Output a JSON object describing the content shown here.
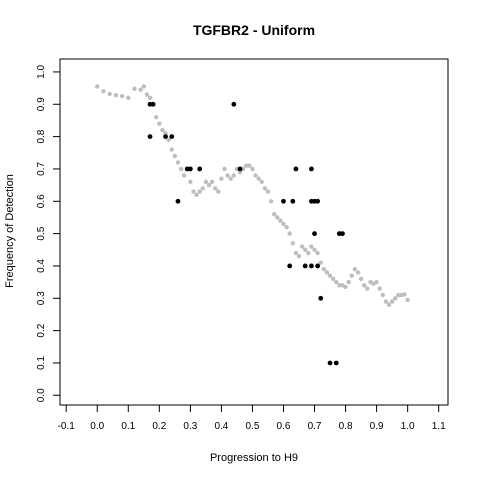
{
  "chart_data": {
    "type": "scatter",
    "title": "TGFBR2 - Uniform",
    "xlabel": "Progression to H9",
    "ylabel": "Frequency of Detection",
    "xlim": [
      -0.12,
      1.13
    ],
    "ylim": [
      -0.03,
      1.04
    ],
    "xticks": [
      -0.1,
      0.0,
      0.1,
      0.2,
      0.3,
      0.4,
      0.5,
      0.6,
      0.7,
      0.8,
      0.9,
      1.0,
      1.1
    ],
    "yticks": [
      0.0,
      0.1,
      0.2,
      0.3,
      0.4,
      0.5,
      0.6,
      0.7,
      0.8,
      0.9,
      1.0
    ],
    "tick_labels_x": [
      "-0.1",
      "0.0",
      "0.1",
      "0.2",
      "0.3",
      "0.4",
      "0.5",
      "0.6",
      "0.7",
      "0.8",
      "0.9",
      "1.0",
      "1.1"
    ],
    "tick_labels_y": [
      "0.0",
      "0.1",
      "0.2",
      "0.3",
      "0.4",
      "0.5",
      "0.6",
      "0.7",
      "0.8",
      "0.9",
      "1.0"
    ],
    "grid": false,
    "series": [
      {
        "style": "trend",
        "color": "#bebebe",
        "points": [
          [
            0.0,
            0.955
          ],
          [
            0.02,
            0.94
          ],
          [
            0.04,
            0.932
          ],
          [
            0.06,
            0.928
          ],
          [
            0.08,
            0.925
          ],
          [
            0.1,
            0.92
          ],
          [
            0.12,
            0.948
          ],
          [
            0.14,
            0.945
          ],
          [
            0.15,
            0.955
          ],
          [
            0.16,
            0.93
          ],
          [
            0.17,
            0.92
          ],
          [
            0.18,
            0.9
          ],
          [
            0.19,
            0.86
          ],
          [
            0.2,
            0.84
          ],
          [
            0.21,
            0.82
          ],
          [
            0.22,
            0.81
          ],
          [
            0.23,
            0.79
          ],
          [
            0.24,
            0.76
          ],
          [
            0.25,
            0.74
          ],
          [
            0.26,
            0.72
          ],
          [
            0.27,
            0.7
          ],
          [
            0.28,
            0.68
          ],
          [
            0.29,
            0.7
          ],
          [
            0.3,
            0.66
          ],
          [
            0.31,
            0.63
          ],
          [
            0.32,
            0.62
          ],
          [
            0.33,
            0.63
          ],
          [
            0.34,
            0.64
          ],
          [
            0.35,
            0.66
          ],
          [
            0.36,
            0.65
          ],
          [
            0.37,
            0.66
          ],
          [
            0.38,
            0.64
          ],
          [
            0.39,
            0.63
          ],
          [
            0.4,
            0.67
          ],
          [
            0.41,
            0.7
          ],
          [
            0.42,
            0.68
          ],
          [
            0.43,
            0.67
          ],
          [
            0.44,
            0.68
          ],
          [
            0.45,
            0.7
          ],
          [
            0.46,
            0.69
          ],
          [
            0.47,
            0.7
          ],
          [
            0.48,
            0.71
          ],
          [
            0.49,
            0.71
          ],
          [
            0.5,
            0.7
          ],
          [
            0.51,
            0.68
          ],
          [
            0.52,
            0.67
          ],
          [
            0.53,
            0.66
          ],
          [
            0.54,
            0.64
          ],
          [
            0.55,
            0.63
          ],
          [
            0.56,
            0.6
          ],
          [
            0.57,
            0.56
          ],
          [
            0.58,
            0.55
          ],
          [
            0.59,
            0.54
          ],
          [
            0.6,
            0.53
          ],
          [
            0.61,
            0.52
          ],
          [
            0.62,
            0.5
          ],
          [
            0.63,
            0.47
          ],
          [
            0.64,
            0.44
          ],
          [
            0.65,
            0.43
          ],
          [
            0.66,
            0.46
          ],
          [
            0.67,
            0.45
          ],
          [
            0.68,
            0.44
          ],
          [
            0.69,
            0.46
          ],
          [
            0.7,
            0.45
          ],
          [
            0.71,
            0.44
          ],
          [
            0.72,
            0.41
          ],
          [
            0.73,
            0.39
          ],
          [
            0.74,
            0.38
          ],
          [
            0.75,
            0.37
          ],
          [
            0.76,
            0.36
          ],
          [
            0.77,
            0.35
          ],
          [
            0.78,
            0.34
          ],
          [
            0.79,
            0.34
          ],
          [
            0.8,
            0.335
          ],
          [
            0.81,
            0.35
          ],
          [
            0.82,
            0.37
          ],
          [
            0.83,
            0.39
          ],
          [
            0.84,
            0.38
          ],
          [
            0.85,
            0.36
          ],
          [
            0.86,
            0.34
          ],
          [
            0.87,
            0.33
          ],
          [
            0.88,
            0.35
          ],
          [
            0.89,
            0.345
          ],
          [
            0.9,
            0.35
          ],
          [
            0.91,
            0.33
          ],
          [
            0.92,
            0.31
          ],
          [
            0.93,
            0.29
          ],
          [
            0.94,
            0.28
          ],
          [
            0.95,
            0.29
          ],
          [
            0.96,
            0.3
          ],
          [
            0.97,
            0.31
          ],
          [
            0.98,
            0.31
          ],
          [
            0.99,
            0.312
          ],
          [
            1.0,
            0.295
          ]
        ]
      },
      {
        "style": "observed",
        "color": "#000000",
        "points": [
          [
            0.17,
            0.9
          ],
          [
            0.18,
            0.9
          ],
          [
            0.17,
            0.8
          ],
          [
            0.22,
            0.8
          ],
          [
            0.24,
            0.8
          ],
          [
            0.29,
            0.7
          ],
          [
            0.3,
            0.7
          ],
          [
            0.33,
            0.7
          ],
          [
            0.26,
            0.6
          ],
          [
            0.44,
            0.9
          ],
          [
            0.46,
            0.7
          ],
          [
            0.6,
            0.6
          ],
          [
            0.63,
            0.6
          ],
          [
            0.64,
            0.7
          ],
          [
            0.69,
            0.7
          ],
          [
            0.69,
            0.6
          ],
          [
            0.7,
            0.6
          ],
          [
            0.71,
            0.6
          ],
          [
            0.7,
            0.5
          ],
          [
            0.62,
            0.4
          ],
          [
            0.67,
            0.4
          ],
          [
            0.69,
            0.4
          ],
          [
            0.71,
            0.4
          ],
          [
            0.72,
            0.3
          ],
          [
            0.78,
            0.5
          ],
          [
            0.79,
            0.5
          ],
          [
            0.75,
            0.1
          ],
          [
            0.77,
            0.1
          ]
        ]
      }
    ]
  }
}
